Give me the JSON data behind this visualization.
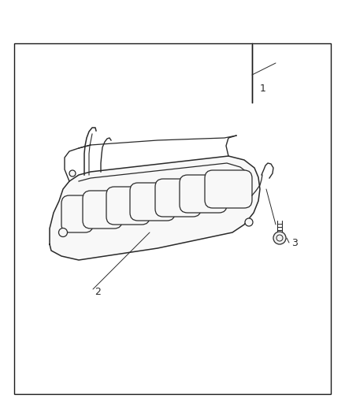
{
  "background_color": "#ffffff",
  "border_color": "#1a1a1a",
  "line_color": "#2a2a2a",
  "label_color": "#2a2a2a",
  "label_fontsize": 9,
  "label1": "1",
  "label2": "2",
  "label3": "3"
}
